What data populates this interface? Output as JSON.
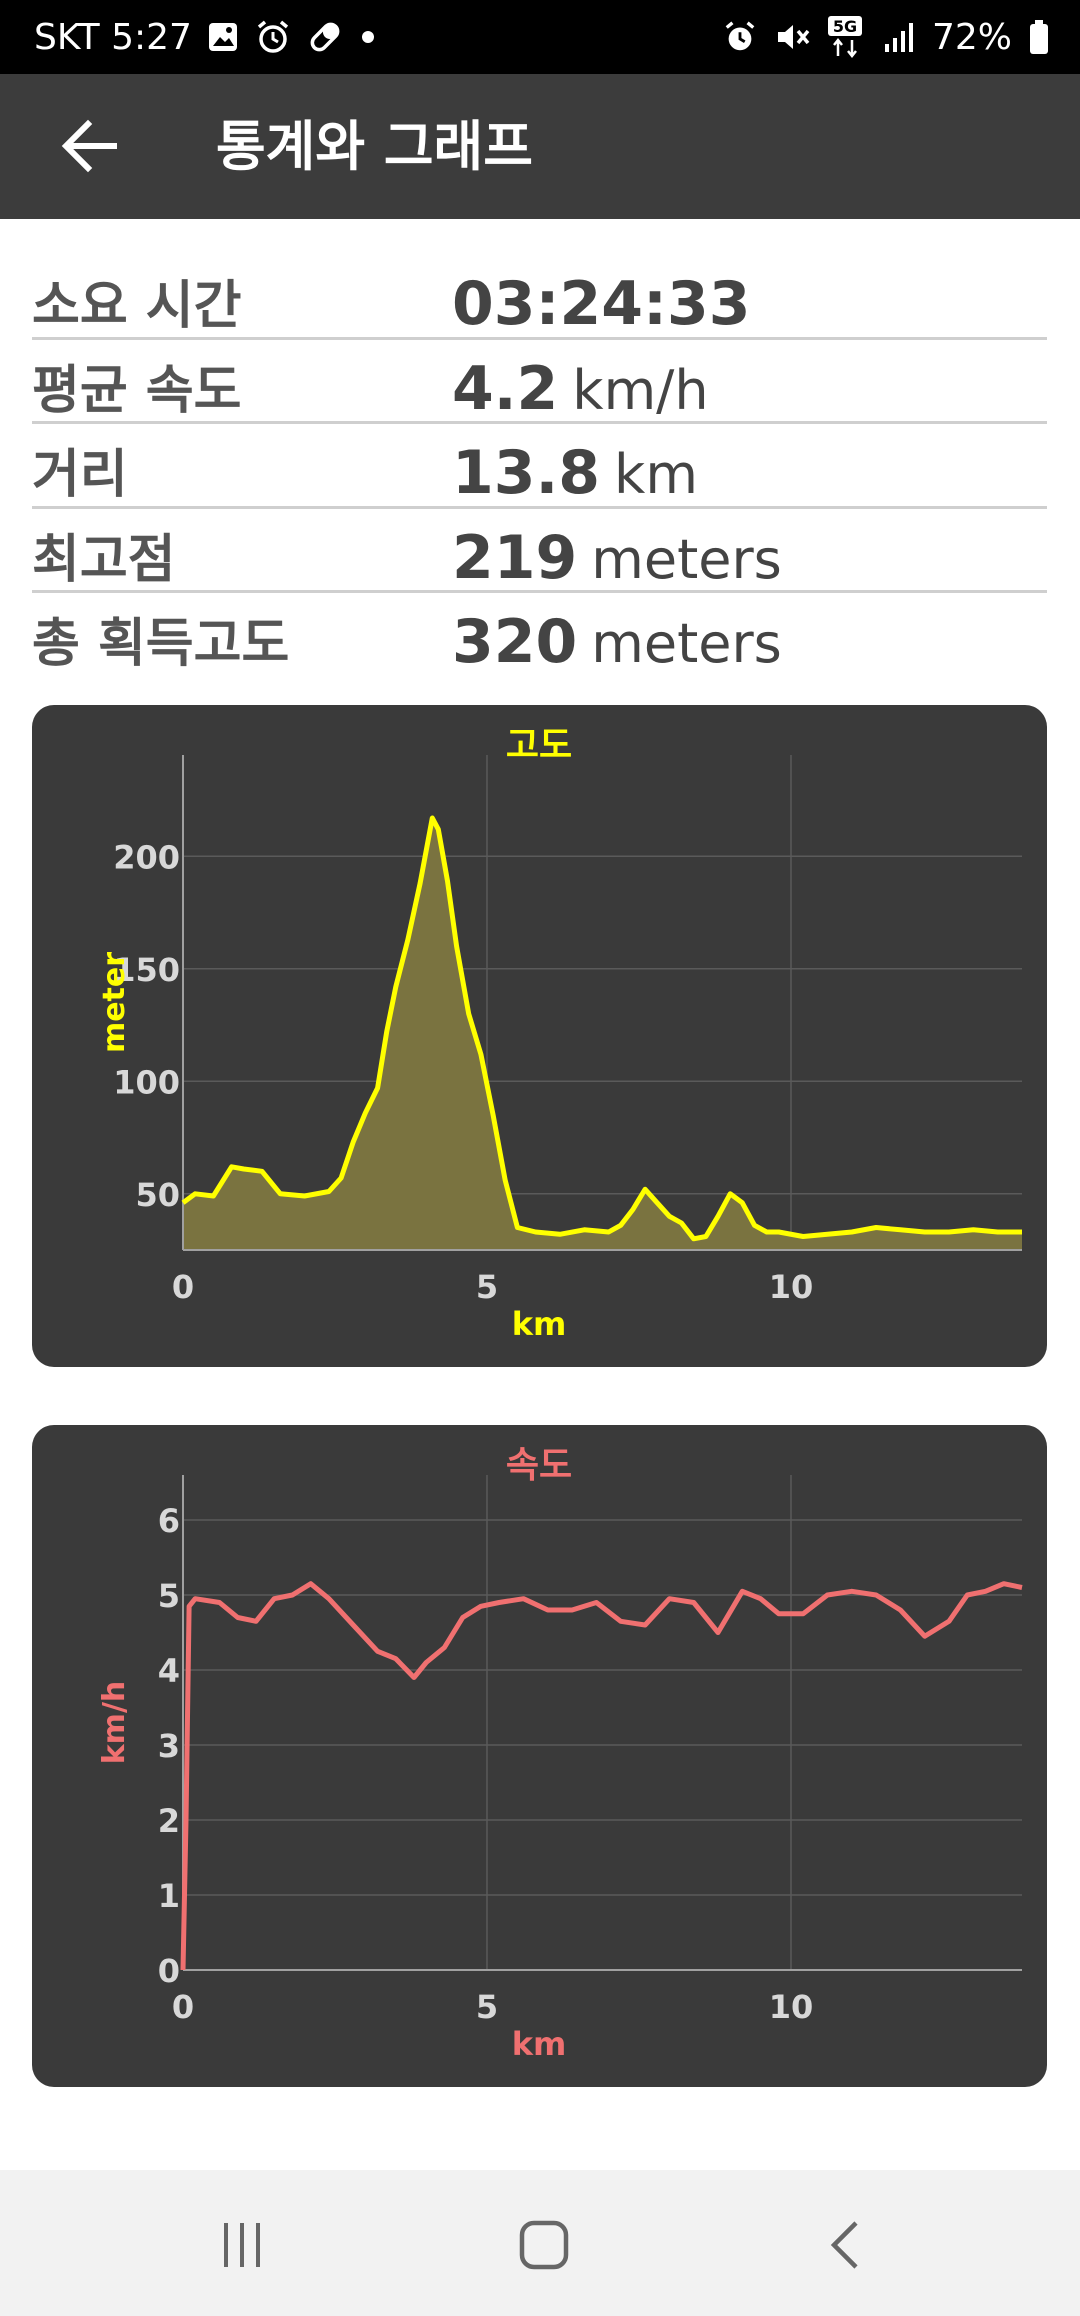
{
  "status_bar": {
    "carrier_time": "SKT 5:27",
    "battery": "72%",
    "network": "5G",
    "icons_left": [
      "gallery-icon",
      "alarm-icon",
      "pill-icon",
      "dot-icon"
    ],
    "icons_right": [
      "alarm-icon",
      "mute-icon",
      "5g-icon",
      "signal-icon",
      "battery-icon"
    ]
  },
  "app_bar": {
    "title": "통계와 그래프"
  },
  "stats": [
    {
      "label": "소요 시간",
      "value": "03:24:33",
      "unit": ""
    },
    {
      "label": "평균 속도",
      "value": "4.2",
      "unit": "km/h"
    },
    {
      "label": "거리",
      "value": "13.8",
      "unit": "km"
    },
    {
      "label": "최고점",
      "value": "219",
      "unit": "meters"
    },
    {
      "label": "총 획득고도",
      "value": "320",
      "unit": "meters"
    }
  ],
  "chart_data": [
    {
      "type": "area",
      "title": "고도",
      "xlabel": "km",
      "ylabel": "meter",
      "xlim": [
        0,
        13.8
      ],
      "ylim": [
        25,
        245
      ],
      "x_ticks": [
        0,
        5,
        10
      ],
      "x_tick_labels": [
        "0",
        "5",
        "10"
      ],
      "y_ticks": [
        50,
        100,
        150,
        200
      ],
      "y_tick_labels": [
        "50",
        "100",
        "150",
        "200"
      ],
      "grid": true,
      "color": "#ffff00",
      "fill": "#7a7340",
      "x": [
        0,
        0.2,
        0.5,
        0.8,
        1.0,
        1.3,
        1.6,
        2.0,
        2.4,
        2.6,
        2.8,
        3.0,
        3.2,
        3.35,
        3.5,
        3.7,
        3.9,
        4.1,
        4.2,
        4.35,
        4.5,
        4.7,
        4.9,
        5.1,
        5.3,
        5.5,
        5.8,
        6.2,
        6.6,
        7.0,
        7.2,
        7.4,
        7.6,
        7.8,
        8.0,
        8.2,
        8.4,
        8.6,
        8.8,
        9.0,
        9.2,
        9.4,
        9.6,
        9.8,
        10.2,
        10.6,
        11.0,
        11.4,
        11.8,
        12.2,
        12.6,
        13.0,
        13.4,
        13.8
      ],
      "y": [
        46,
        50,
        49,
        62,
        61,
        60,
        50,
        49,
        51,
        57,
        73,
        86,
        97,
        122,
        142,
        163,
        188,
        217,
        212,
        189,
        160,
        130,
        112,
        85,
        56,
        35,
        33,
        32,
        34,
        33,
        36,
        43,
        52,
        46,
        40,
        37,
        30,
        31,
        40,
        50,
        46,
        36,
        33,
        33,
        31,
        32,
        33,
        35,
        34,
        33,
        33,
        34,
        33,
        33
      ]
    },
    {
      "type": "line",
      "title": "속도",
      "xlabel": "km",
      "ylabel": "km/h",
      "xlim": [
        0,
        13.8
      ],
      "ylim": [
        0,
        6.6
      ],
      "x_ticks": [
        0,
        5,
        10
      ],
      "x_tick_labels": [
        "0",
        "5",
        "10"
      ],
      "y_ticks": [
        0,
        1,
        2,
        3,
        4,
        5,
        6
      ],
      "y_tick_labels": [
        "0",
        "1",
        "2",
        "3",
        "4",
        "5",
        "6"
      ],
      "grid": true,
      "color": "#f07070",
      "x": [
        0,
        0.05,
        0.1,
        0.2,
        0.6,
        0.9,
        1.2,
        1.5,
        1.8,
        2.1,
        2.4,
        2.8,
        3.2,
        3.5,
        3.8,
        4.0,
        4.3,
        4.6,
        4.9,
        5.2,
        5.6,
        6.0,
        6.4,
        6.8,
        7.2,
        7.6,
        8.0,
        8.4,
        8.8,
        9.2,
        9.5,
        9.8,
        10.2,
        10.6,
        11.0,
        11.4,
        11.8,
        12.2,
        12.6,
        12.9,
        13.2,
        13.5,
        13.8
      ],
      "y": [
        0,
        2.0,
        4.85,
        4.95,
        4.9,
        4.7,
        4.65,
        4.95,
        5.0,
        5.15,
        4.95,
        4.6,
        4.25,
        4.15,
        3.9,
        4.1,
        4.3,
        4.7,
        4.85,
        4.9,
        4.95,
        4.8,
        4.8,
        4.9,
        4.65,
        4.6,
        4.95,
        4.9,
        4.5,
        5.05,
        4.95,
        4.75,
        4.75,
        5.0,
        5.05,
        5.0,
        4.8,
        4.45,
        4.65,
        5.0,
        5.05,
        5.15,
        5.1
      ]
    }
  ]
}
